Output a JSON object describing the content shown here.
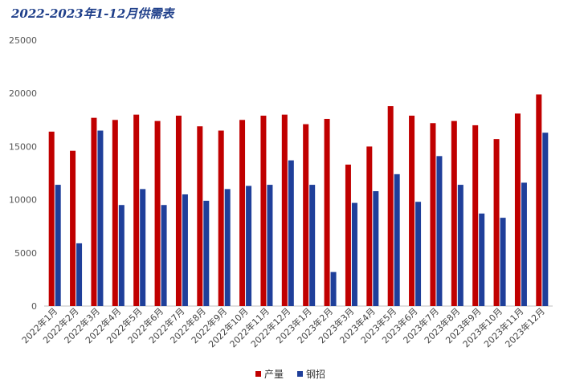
{
  "chart_data": {
    "type": "bar",
    "title": "2022-2023年1-12月供需表",
    "categories": [
      "2022年1月",
      "2022年2月",
      "2022年3月",
      "2022年4月",
      "2022年5月",
      "2022年6月",
      "2022年7月",
      "2022年8月",
      "2022年9月",
      "2022年10月",
      "2022年11月",
      "2022年12月",
      "2023年1月",
      "2023年2月",
      "2023年3月",
      "2023年4月",
      "2023年5月",
      "2023年6月",
      "2023年7月",
      "2023年8月",
      "2023年9月",
      "2023年10月",
      "2023年11月",
      "2023年12月"
    ],
    "series": [
      {
        "name": "产量",
        "color": "#c00000",
        "values": [
          16400,
          14600,
          17700,
          17500,
          18000,
          17400,
          17900,
          16900,
          16500,
          17500,
          17900,
          18000,
          17100,
          17600,
          13300,
          15000,
          18800,
          17900,
          17200,
          17400,
          17000,
          15700,
          18100,
          19900
        ]
      },
      {
        "name": "钢招",
        "color": "#1f3f9a",
        "values": [
          11400,
          5900,
          16500,
          9500,
          11000,
          9500,
          10500,
          9900,
          11000,
          11300,
          11400,
          13700,
          11400,
          3200,
          9700,
          10800,
          12400,
          9800,
          14100,
          11400,
          8700,
          8300,
          11600,
          16300
        ]
      }
    ],
    "yticks": [
      "0",
      "5000",
      "10000",
      "15000",
      "20000",
      "25000"
    ],
    "ylim": [
      0,
      25000
    ],
    "grid": false,
    "legend_position": "bottom-center"
  }
}
